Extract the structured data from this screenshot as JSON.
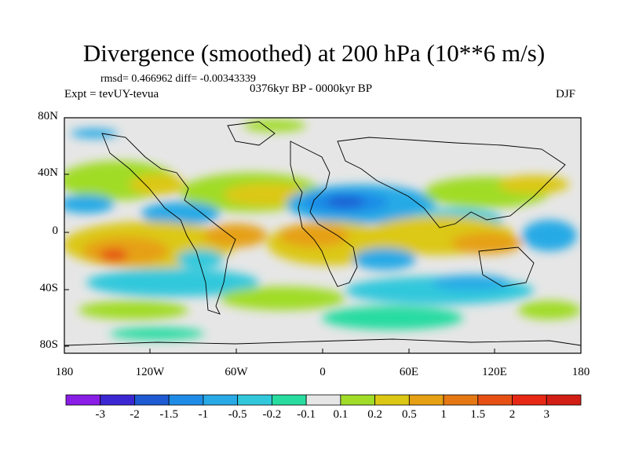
{
  "title": "Divergence (smoothed) at 200 hPa (10**6 m/s)",
  "stats": "rmsd= 0.466962 diff= -0.00343339",
  "left_label": "Expt = tevUY-tevua",
  "center_label": "0376kyr BP - 0000kyr BP",
  "right_label": "DJF",
  "lat_ticks": [
    "80N",
    "40N",
    "0",
    "40S",
    "80S"
  ],
  "lon_ticks": [
    "180",
    "120W",
    "60W",
    "0",
    "60E",
    "120E",
    "180"
  ],
  "colorbar": {
    "labels": [
      "-3",
      "-2",
      "-1.5",
      "-1",
      "-0.5",
      "-0.2",
      "-0.1",
      "0.1",
      "0.2",
      "0.5",
      "1",
      "1.5",
      "2",
      "3"
    ],
    "colors": [
      "#8a1ee6",
      "#3c28d2",
      "#1e5ad2",
      "#1e8ce6",
      "#28aae6",
      "#32c8dc",
      "#28dca0",
      "#e6e6e6",
      "#a0dc28",
      "#dcc814",
      "#e6a014",
      "#e67814",
      "#e65014",
      "#e62814",
      "#d21e14"
    ]
  },
  "palette": {
    "neutral": "#e6e6e6",
    "frame": "#000000"
  }
}
